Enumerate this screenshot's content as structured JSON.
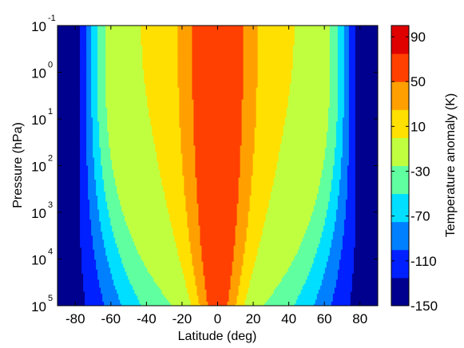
{
  "chart_data": {
    "type": "heatmap",
    "plot_style": "filled contour",
    "title": "",
    "xlabel": "Latitude (deg)",
    "ylabel": "Pressure (hPa)",
    "xlim": [
      -90,
      90
    ],
    "x_ticks": [
      -80,
      -60,
      -40,
      -20,
      0,
      20,
      40,
      60,
      80
    ],
    "y_scale": "log",
    "y_direction": "reversed",
    "ylim_hPa": [
      0.1,
      100000
    ],
    "y_ticks": [
      {
        "base": "10",
        "exp": "-1",
        "value_hPa": 0.1
      },
      {
        "base": "10",
        "exp": "0",
        "value_hPa": 1
      },
      {
        "base": "10",
        "exp": "1",
        "value_hPa": 10
      },
      {
        "base": "10",
        "exp": "2",
        "value_hPa": 100
      },
      {
        "base": "10",
        "exp": "3",
        "value_hPa": 1000
      },
      {
        "base": "10",
        "exp": "4",
        "value_hPa": 10000
      },
      {
        "base": "10",
        "exp": "5",
        "value_hPa": 100000
      }
    ],
    "colorbar": {
      "label": "Temperature anomaly (K)",
      "range": [
        -150,
        100
      ],
      "ticks": [
        "90",
        "50",
        "10",
        "-30",
        "-70",
        "-110",
        "-150"
      ],
      "tick_values": [
        90,
        50,
        10,
        -30,
        -70,
        -110,
        -150
      ],
      "colormap": "jet"
    },
    "contour_levels": [
      -150,
      -125,
      -100,
      -75,
      -50,
      -25,
      0,
      25,
      50,
      75,
      100
    ],
    "level_colors": [
      "#00008f",
      "#0020ff",
      "#0080ff",
      "#00dfff",
      "#60ffa0",
      "#c0ff40",
      "#ffe000",
      "#ffa000",
      "#ff4000",
      "#df0000"
    ],
    "field_description": "Warm anomaly (+60 to +75 K) centred on the equator, widest at low pressure and narrowing toward the surface; cold anomaly (below -125 K) poleward of about 65 deg, extending equatorward near the surface",
    "grid": false,
    "legend": "colorbar at right"
  }
}
